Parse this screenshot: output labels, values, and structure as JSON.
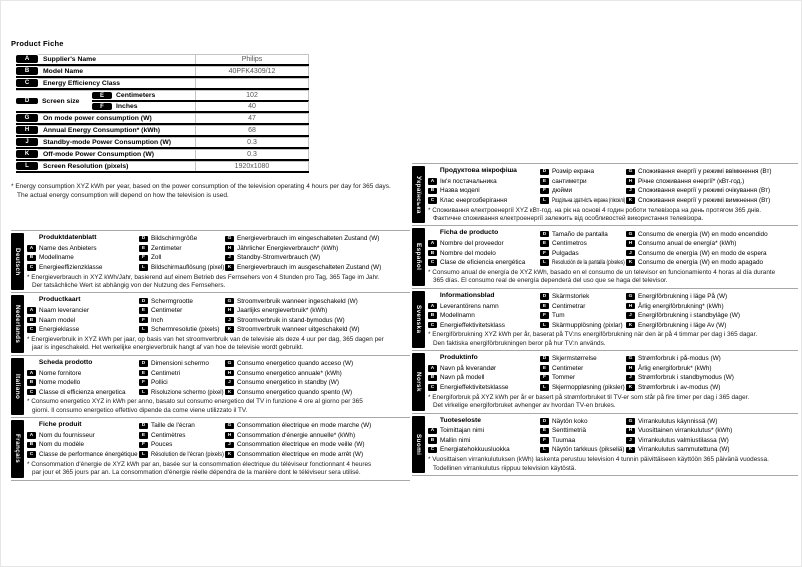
{
  "page_title": "Product Fiche",
  "fiche": {
    "rows": {
      "a": {
        "k": "A",
        "label": "Supplier's Name",
        "value": "Philips"
      },
      "b": {
        "k": "B",
        "label": "Model Name",
        "value": "40PFK4309/12"
      },
      "c": {
        "k": "C",
        "label": "Energy Efficiency Class",
        "value": ""
      },
      "d": {
        "k": "D",
        "label": "Screen size"
      },
      "e": {
        "k": "E",
        "label": "Centimeters",
        "value": "102"
      },
      "f": {
        "k": "F",
        "label": "Inches",
        "value": "40"
      },
      "g": {
        "k": "G",
        "label": "On mode power consumption (W)",
        "value": "47"
      },
      "h": {
        "k": "H",
        "label": "Annual Energy Consumption* (kWh)",
        "value": "68"
      },
      "j": {
        "k": "J",
        "label": "Standby-mode Power Consumption (W)",
        "value": "0.3"
      },
      "k": {
        "k": "K",
        "label": "Off-mode Power Consumption (W)",
        "value": "0.3"
      },
      "l": {
        "k": "L",
        "label": "Screen Resolution (pixels)",
        "value": "1920x1080"
      }
    },
    "footnote": [
      "* Energy consumption XYZ kWh per year, based on the power consumption of the television operating 4 hours per day for 365 days.",
      "The actual energy consumption will depend on how the television is used."
    ]
  },
  "languages": [
    {
      "name": "Deutsch",
      "title": "Produktdatenblatt",
      "col1": [
        {
          "k": "A",
          "t": "Name des Anbieters"
        },
        {
          "k": "B",
          "t": "Modellname"
        },
        {
          "k": "C",
          "t": "Energieeffizienzklasse"
        }
      ],
      "col2": [
        {
          "k": "D",
          "t": "Bildschirmgröße"
        },
        {
          "k": "E",
          "t": "Zentimeter"
        },
        {
          "k": "F",
          "t": "Zoll"
        },
        {
          "k": "L",
          "t": "Bildschirmauflösung (pixel)"
        }
      ],
      "col3": [
        {
          "k": "G",
          "t": "Energieverbrauch im eingeschalteten Zustand (W)"
        },
        {
          "k": "H",
          "t": "Jährlicher Energieverbrauch* (kWh)"
        },
        {
          "k": "J",
          "t": "Standby-Stromverbrauch (W)"
        },
        {
          "k": "K",
          "t": "Energieverbrauch im ausgeschalteten Zustand (W)"
        }
      ],
      "note": [
        "* Energieverbrauch in XYZ kWh/Jahr, basierend auf einem Betrieb des Fernsehers von 4 Stunden pro Tag, 365 Tage im Jahr.",
        "Der tatsächliche Wert ist abhängig von der Nutzung des Fernsehers."
      ]
    },
    {
      "name": "Nederlands",
      "title": "Productkaart",
      "col1": [
        {
          "k": "A",
          "t": "Naam leverancier"
        },
        {
          "k": "B",
          "t": "Naam model"
        },
        {
          "k": "C",
          "t": "Energieklasse"
        }
      ],
      "col2": [
        {
          "k": "D",
          "t": "Schermgrootte"
        },
        {
          "k": "E",
          "t": "Centimeter"
        },
        {
          "k": "F",
          "t": "Inch"
        },
        {
          "k": "L",
          "t": "Schermresolutie (pixels)"
        }
      ],
      "col3": [
        {
          "k": "G",
          "t": "Stroomverbruik wanneer ingeschakeld (W)"
        },
        {
          "k": "H",
          "t": "Jaarlijks energieverbruik* (kWh)"
        },
        {
          "k": "J",
          "t": "Stroomverbruik in stand-bymodus (W)"
        },
        {
          "k": "K",
          "t": "Stroomverbruik wanneer uitgeschakeld (W)"
        }
      ],
      "note": [
        "* Energieverbruik in XYZ kWh per jaar, op basis van het stroomverbruik van de televisie als deze 4 uur per dag, 365 dagen per",
        "jaar is ingeschakeld. Het werkelijke energieverbruik hangt af van hoe de televisie wordt gebruikt."
      ]
    },
    {
      "name": "Italiano",
      "title": "Scheda prodotto",
      "col1": [
        {
          "k": "A",
          "t": "Nome fornitore"
        },
        {
          "k": "B",
          "t": "Nome modello"
        },
        {
          "k": "C",
          "t": "Classe di efficienza energetica"
        }
      ],
      "col2": [
        {
          "k": "D",
          "t": "Dimensioni schermo"
        },
        {
          "k": "E",
          "t": "Centimetri"
        },
        {
          "k": "F",
          "t": "Pollici"
        },
        {
          "k": "L",
          "t": "Risoluzione schermo (pixel)"
        }
      ],
      "col3": [
        {
          "k": "G",
          "t": "Consumo energetico quando acceso (W)"
        },
        {
          "k": "H",
          "t": "Consumo energetico annuale* (kWh)"
        },
        {
          "k": "J",
          "t": "Consumo energetico in standby (W)"
        },
        {
          "k": "K",
          "t": "Consumo energetico quando spento (W)"
        }
      ],
      "note": [
        "* Consumo energetico XYZ in kWh per anno, basato sul consumo energetico del TV in funzione 4 ore al giorno per 365",
        "giorni. Il consumo energetico effettivo dipende da come viene utilizzato il TV."
      ]
    },
    {
      "name": "Français",
      "title": "Fiche produit",
      "col1": [
        {
          "k": "A",
          "t": "Nom du fournisseur"
        },
        {
          "k": "B",
          "t": "Nom du modèle"
        },
        {
          "k": "C",
          "t": "Classe de performance énergétique"
        }
      ],
      "col2": [
        {
          "k": "D",
          "t": "Taille de l'écran"
        },
        {
          "k": "E",
          "t": "Centimètres"
        },
        {
          "k": "F",
          "t": "Pouces"
        },
        {
          "k": "L",
          "t": "Résolution de l'écran (pixels)"
        }
      ],
      "col3": [
        {
          "k": "G",
          "t": "Consommation électrique en mode marche (W)"
        },
        {
          "k": "H",
          "t": "Consommation d'énergie annuelle* (kWh)"
        },
        {
          "k": "J",
          "t": "Consommation électrique en mode veille (W)"
        },
        {
          "k": "K",
          "t": "Consommation électrique en mode arrêt (W)"
        }
      ],
      "note": [
        "* Consommation d'énergie de XYZ kWh par an, basée sur la consommation électrique du téléviseur fonctionnant 4 heures",
        "par jour et 365 jours par an. La consommation d'énergie réelle dépendra de la manière dont le téléviseur sera utilisé."
      ]
    },
    {
      "name": "Українська",
      "title": "Продуктова мікрофіша",
      "col1": [
        {
          "k": "A",
          "t": "Ім'я постачальника"
        },
        {
          "k": "B",
          "t": "Назва моделі"
        },
        {
          "k": "C",
          "t": "Клас енергозберігання"
        }
      ],
      "col2": [
        {
          "k": "D",
          "t": "Розмір екрана"
        },
        {
          "k": "E",
          "t": "сантиметри"
        },
        {
          "k": "F",
          "t": "дюйми"
        },
        {
          "k": "L",
          "t": "Роздільна здатність екрана (пікселі)"
        }
      ],
      "col3": [
        {
          "k": "G",
          "t": "Споживання енергії у режимі ввімкнення (Вт)"
        },
        {
          "k": "H",
          "t": "Річне споживання енергії* (кВт-год.)"
        },
        {
          "k": "J",
          "t": "Споживання енергії у режимі очікування (Вт)"
        },
        {
          "k": "K",
          "t": "Споживання енергії у режимі вимкнення (Вт)"
        }
      ],
      "note": [
        "* Споживання електроенергії XYZ кВт-год. на рік на основі 4 годин роботи телевізора на день протягом 365 днів.",
        "Фактичне споживання електроенергії залежить від особливостей використання телевізора."
      ]
    },
    {
      "name": "Español",
      "title": "Ficha de producto",
      "col1": [
        {
          "k": "A",
          "t": "Nombre del proveedor"
        },
        {
          "k": "B",
          "t": "Nombre del modelo"
        },
        {
          "k": "C",
          "t": "Clase de eficiencia energética"
        }
      ],
      "col2": [
        {
          "k": "D",
          "t": "Tamaño de pantalla"
        },
        {
          "k": "E",
          "t": "Centímetros"
        },
        {
          "k": "F",
          "t": "Pulgadas"
        },
        {
          "k": "L",
          "t": "Resolución de la pantalla (píxeles)"
        }
      ],
      "col3": [
        {
          "k": "G",
          "t": "Consumo de energía (W) en modo encendido"
        },
        {
          "k": "H",
          "t": "Consumo anual de energía* (kWh)"
        },
        {
          "k": "J",
          "t": "Consumo de energía (W) en modo de espera"
        },
        {
          "k": "K",
          "t": "Consumo de energía (W) en modo apagado"
        }
      ],
      "note": [
        "* Consumo anual de energía de XYZ kWh, basado en el consumo de un televisor en funcionamiento 4 horas al día durante",
        "365 días. El consumo real de energía dependerá del uso que se haga del televisor."
      ]
    },
    {
      "name": "Svenska",
      "title": "Informationsblad",
      "col1": [
        {
          "k": "A",
          "t": "Leverantörens namn"
        },
        {
          "k": "B",
          "t": "Modellnamn"
        },
        {
          "k": "C",
          "t": "Energieffektivitetsklass"
        }
      ],
      "col2": [
        {
          "k": "D",
          "t": "Skärmstorlek"
        },
        {
          "k": "E",
          "t": "Centimetrar"
        },
        {
          "k": "F",
          "t": "Tum"
        },
        {
          "k": "L",
          "t": "Skärmupplösning (pixlar)"
        }
      ],
      "col3": [
        {
          "k": "G",
          "t": "Energiförbrukning i läge På (W)"
        },
        {
          "k": "H",
          "t": "Årlig energiförbrukning* (kWh)"
        },
        {
          "k": "J",
          "t": "Energiförbrukning i standbyläge (W)"
        },
        {
          "k": "K",
          "t": "Energiförbrukning i läge Av (W)"
        }
      ],
      "note": [
        "* Energiförbrukning XYZ kWh per år, baserat på TV:ns energiförbrukning när den är på 4 timmar per dag i 365 dagar.",
        "Den faktiska energiförbrukningen beror på hur TV:n används."
      ]
    },
    {
      "name": "Norsk",
      "title": "Produktinfo",
      "col1": [
        {
          "k": "A",
          "t": "Navn på leverandør"
        },
        {
          "k": "B",
          "t": "Navn på modell"
        },
        {
          "k": "C",
          "t": "Energieffektivitetsklasse"
        }
      ],
      "col2": [
        {
          "k": "D",
          "t": "Skjermstørrelse"
        },
        {
          "k": "E",
          "t": "Centimeter"
        },
        {
          "k": "F",
          "t": "Tommer"
        },
        {
          "k": "L",
          "t": "Skjermoppløsning (piksler)"
        }
      ],
      "col3": [
        {
          "k": "G",
          "t": "Strømforbruk i på-modus (W)"
        },
        {
          "k": "H",
          "t": "Årlig energiforbruk* (kWh)"
        },
        {
          "k": "J",
          "t": "Strømforbruk i standbymodus (W)"
        },
        {
          "k": "K",
          "t": "Strømforbruk i av-modus (W)"
        }
      ],
      "note": [
        "* Energiforbruk på XYZ kWh per år er basert på strømforbruket til TV-er som står på fire timer per dag i 365 dager.",
        "Det virkelige energiforbruket avhenger av hvordan TV-en brukes."
      ]
    },
    {
      "name": "Suomi",
      "title": "Tuoteseloste",
      "col1": [
        {
          "k": "A",
          "t": "Toimittajan nimi"
        },
        {
          "k": "B",
          "t": "Mallin nimi"
        },
        {
          "k": "C",
          "t": "Energiatehokkuusluokka"
        }
      ],
      "col2": [
        {
          "k": "D",
          "t": "Näytön koko"
        },
        {
          "k": "E",
          "t": "Senttimetriä"
        },
        {
          "k": "F",
          "t": "Tuumaa"
        },
        {
          "k": "L",
          "t": "Näytön tarkkuus (pikseliä)"
        }
      ],
      "col3": [
        {
          "k": "G",
          "t": "Virrankulutus käynnissä (W)"
        },
        {
          "k": "H",
          "t": "Vuosittainen virrankulutus* (kWh)"
        },
        {
          "k": "J",
          "t": "Virrankulutus valmiustilassa (W)"
        },
        {
          "k": "K",
          "t": "Virrankulutus sammutettuna (W)"
        }
      ],
      "note": [
        "* Vuosittaisen virrankulutuksen (kWh) laskenta perustuu television 4 tunnin päivittäiseen käyttöön 365 päivänä vuodessa.",
        "Todellinen virrankulutus riippuu television käytöstä."
      ]
    }
  ]
}
